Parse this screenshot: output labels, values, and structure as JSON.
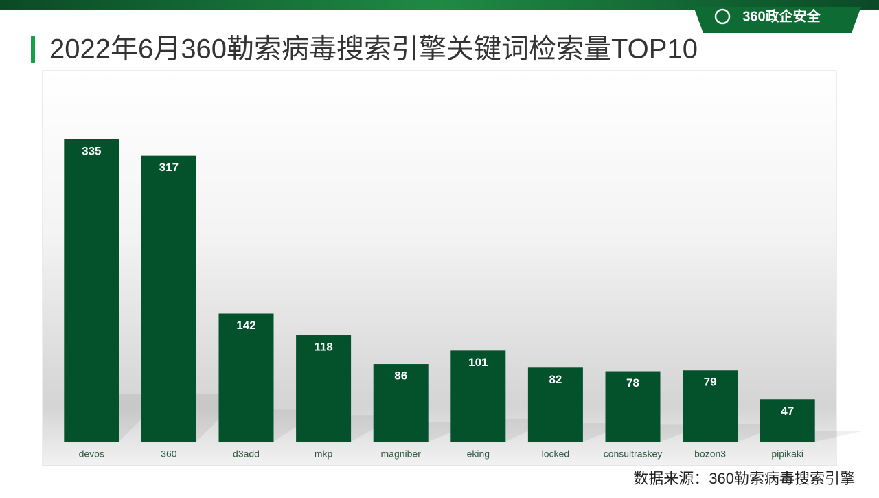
{
  "logo": "360政企安全",
  "chart_data": {
    "type": "bar",
    "title": "2022年6月360勒索病毒搜索引擎关键词检索量TOP10",
    "categories": [
      "devos",
      "360",
      "d3add",
      "mkp",
      "magniber",
      "eking",
      "locked",
      "consultraskey",
      "bozon3",
      "pipikaki"
    ],
    "values": [
      335,
      317,
      142,
      118,
      86,
      101,
      82,
      78,
      79,
      47
    ],
    "color": "#04522c",
    "source": "数据来源：360勒索病毒搜索引擎"
  }
}
